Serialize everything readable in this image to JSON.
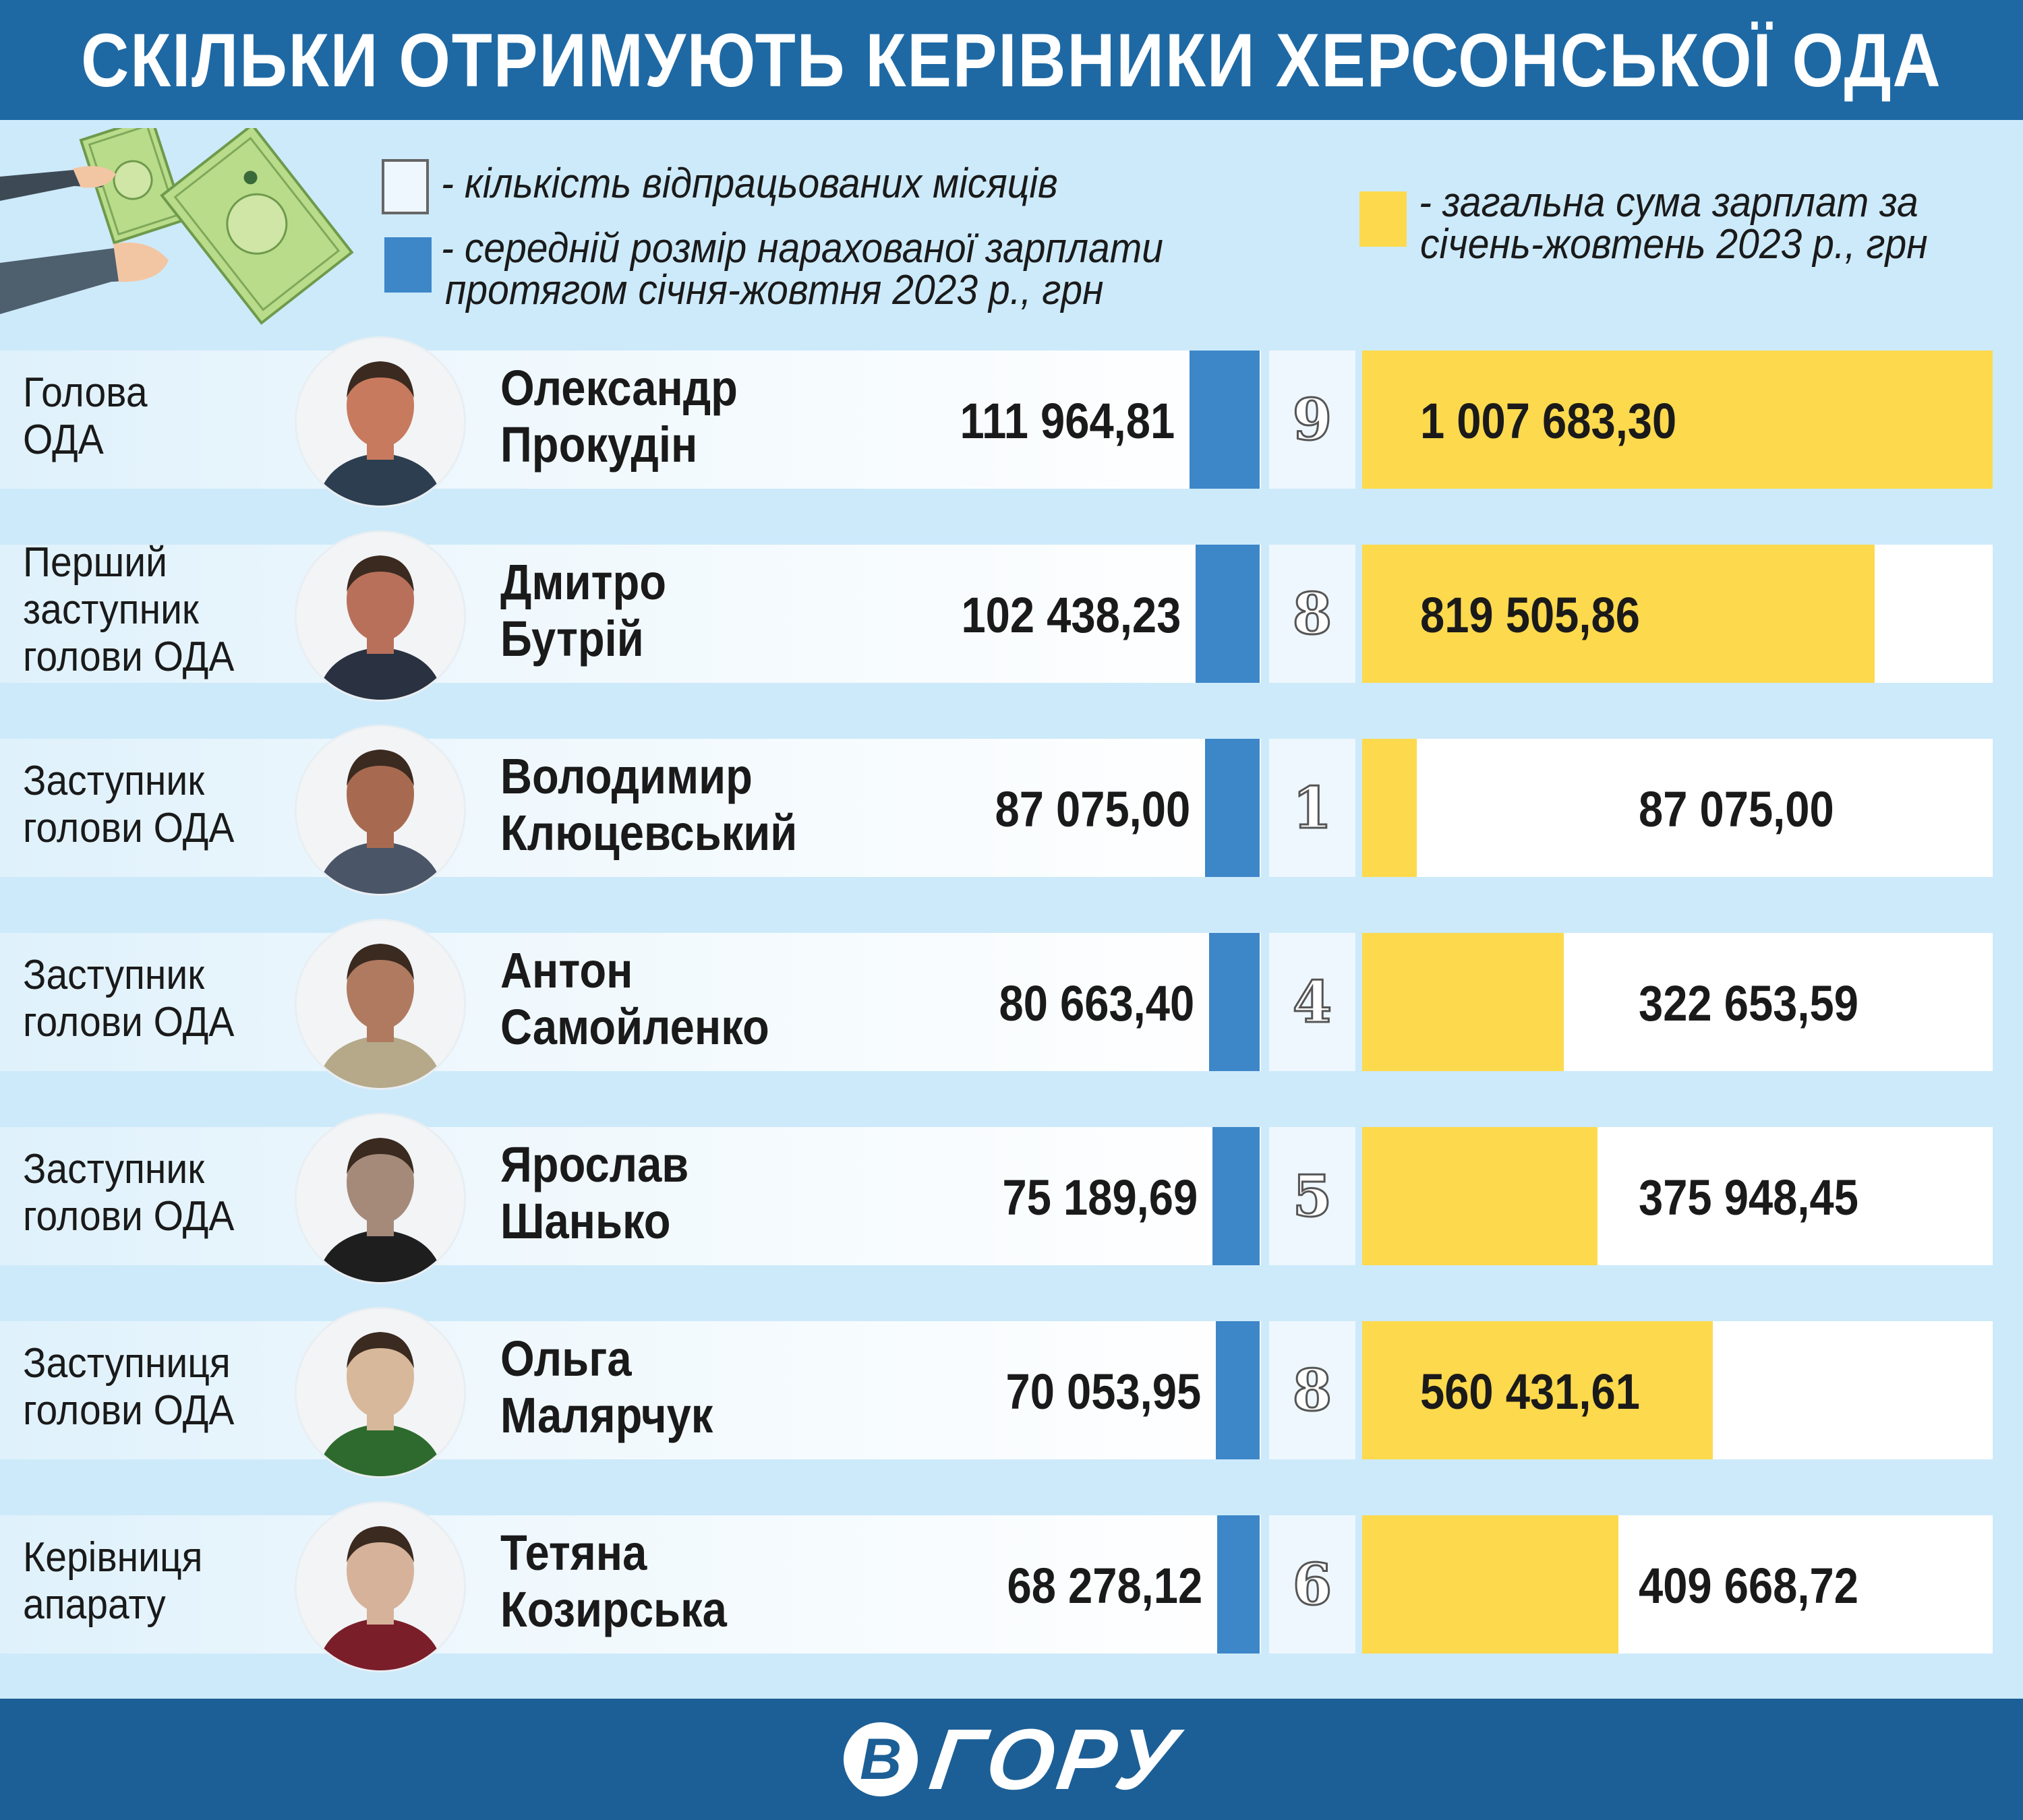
{
  "header": {
    "title": "СКІЛЬКИ ОТРИМУЮТЬ КЕРІВНИКИ ХЕРСОНСЬКОЇ ОДА"
  },
  "legend": {
    "months_line1": "- кількість відпрацьованих місяців",
    "average_line1": "- середній розмір нарахованої зарплати",
    "average_line2": "протягом січня-жовтня 2023 р., грн",
    "total_line1": "- загальна сума зарплат за",
    "total_line2": "січень-жовтень 2023 р., грн"
  },
  "footer": {
    "logo_mark": "В",
    "logo_text": "ГОРУ"
  },
  "colors": {
    "header_bg": "#1e69a4",
    "background": "#cdeafa",
    "average_bar": "#3d87c9",
    "total_bar": "#fdd94d",
    "footer_bg": "#1c5f96"
  },
  "rows": [
    {
      "role": [
        "Голова",
        "ОДА"
      ],
      "name": [
        "Олександр",
        "Прокудін"
      ],
      "avg_text": "111 964,81",
      "months_text": "9",
      "total_text": "1 007 683,30"
    },
    {
      "role": [
        "Перший",
        "заступник",
        "голови ОДА"
      ],
      "name": [
        "Дмитро",
        "Бутрій"
      ],
      "avg_text": "102 438,23",
      "months_text": "8",
      "total_text": "819 505,86"
    },
    {
      "role": [
        "Заступник",
        "голови ОДА"
      ],
      "name": [
        "Володимир",
        "Клюцевський"
      ],
      "avg_text": "87 075,00",
      "months_text": "1",
      "total_text": "87 075,00"
    },
    {
      "role": [
        "Заступник",
        "голови ОДА"
      ],
      "name": [
        "Антон",
        "Самойленко"
      ],
      "avg_text": "80 663,40",
      "months_text": "4",
      "total_text": "322 653,59"
    },
    {
      "role": [
        "Заступник",
        "голови ОДА"
      ],
      "name": [
        "Ярослав",
        "Шанько"
      ],
      "avg_text": "75 189,69",
      "months_text": "5",
      "total_text": "375 948,45"
    },
    {
      "role": [
        "Заступниця",
        "голови ОДА"
      ],
      "name": [
        "Ольга",
        "Малярчук"
      ],
      "avg_text": "70 053,95",
      "months_text": "8",
      "total_text": "560 431,61"
    },
    {
      "role": [
        "Керівниця",
        "апарату"
      ],
      "name": [
        "Тетяна",
        "Козирська"
      ],
      "avg_text": "68 278,12",
      "months_text": "6",
      "total_text": "409 668,72"
    }
  ],
  "chart_data": {
    "type": "bar",
    "categories": [
      "Олександр Прокудін",
      "Дмитро Бутрій",
      "Володимир Клюцевський",
      "Антон Самойленко",
      "Ярослав Шанько",
      "Ольга Малярчук",
      "Тетяна Козирська"
    ],
    "series": [
      {
        "name": "середній розмір нарахованої зарплати протягом січня-жовтня 2023 р., грн",
        "values": [
          111964.81,
          102438.23,
          87075.0,
          80663.4,
          75189.69,
          70053.95,
          68278.12
        ]
      },
      {
        "name": "кількість відпрацьованих місяців",
        "values": [
          9,
          8,
          1,
          4,
          5,
          8,
          6
        ]
      },
      {
        "name": "загальна сума зарплат за січень-жовтень 2023 р., грн",
        "values": [
          1007683.3,
          819505.86,
          87075.0,
          322653.59,
          375948.45,
          560431.61,
          409668.72
        ]
      }
    ],
    "title": "СКІЛЬКИ ОТРИМУЮТЬ КЕРІВНИКИ ХЕРСОНСЬКОЇ ОДА",
    "orientation": "horizontal",
    "grid": false,
    "legend_position": "top"
  }
}
